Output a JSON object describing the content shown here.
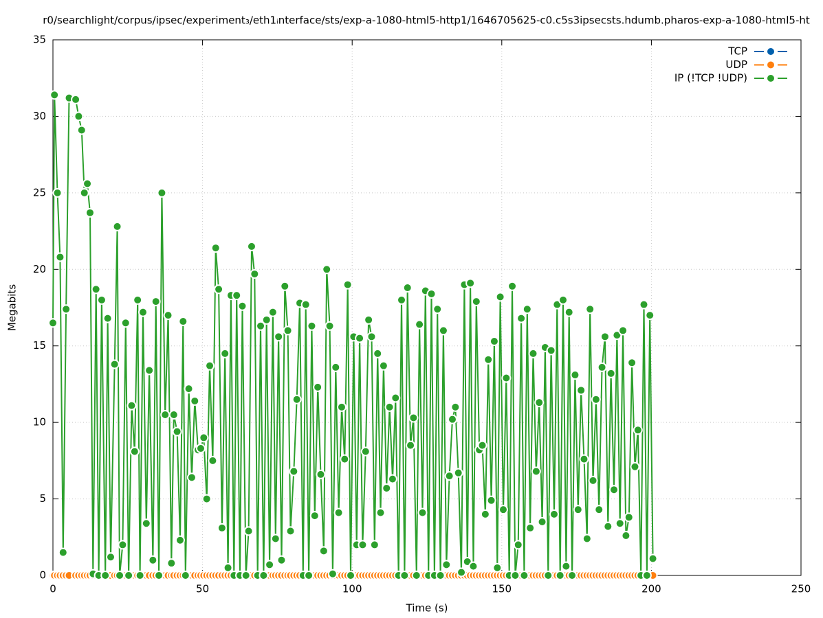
{
  "chart_data": {
    "type": "line",
    "title": "r0/searchlight/corpus/ipsec/experiment₃/eth1ᵢnterface/sts/exp-a-1080-html5-http1/1646705625-c0.c5s3ipsecsts.hdumb.pharos-exp-a-1080-html5-ht",
    "x_label": "Time (s)",
    "y_label": "Megabits",
    "xlim": [
      0,
      250
    ],
    "xticks": [
      0,
      50,
      100,
      150,
      200,
      250
    ],
    "ylim": [
      0,
      35
    ],
    "yticks": [
      0,
      5,
      10,
      15,
      20,
      25,
      30,
      35
    ],
    "grid": true,
    "legend": "top-right",
    "x": [
      0,
      0.5,
      1.5,
      2.4,
      3.4,
      4.4,
      5.4,
      7.6,
      8.6,
      9.6,
      10.5,
      11.5,
      12.4,
      13.4,
      14.4,
      15.3,
      16.3,
      17.5,
      18.3,
      19.3,
      20.6,
      21.5,
      22.3,
      23.3,
      24.3,
      25.3,
      26.3,
      27.3,
      28.3,
      29.1,
      30.1,
      31.2,
      32.2,
      33.4,
      34.4,
      35.4,
      36.4,
      37.5,
      38.5,
      39.6,
      40.4,
      41.5,
      42.5,
      43.5,
      44.3,
      45.4,
      46.4,
      47.4,
      48.5,
      49.4,
      50.4,
      51.4,
      52.4,
      53.4,
      54.4,
      55.4,
      56.5,
      57.5,
      58.5,
      59.5,
      60.5,
      61.4,
      62.5,
      63.3,
      64.5,
      65.4,
      66.4,
      67.4,
      68.4,
      69.4,
      70.4,
      71.4,
      72.4,
      73.5,
      74.4,
      75.4,
      76.4,
      77.5,
      78.5,
      79.4,
      80.5,
      81.5,
      82.5,
      83.6,
      84.5,
      85.5,
      86.5,
      87.5,
      88.5,
      89.5,
      90.5,
      91.5,
      92.5,
      93.5,
      94.5,
      95.5,
      96.5,
      97.5,
      98.5,
      99.5,
      100.5,
      101.5,
      102.5,
      103.5,
      104.5,
      105.5,
      106.5,
      107.5,
      108.5,
      109.5,
      110.5,
      111.5,
      112.5,
      113.5,
      114.5,
      115.5,
      116.5,
      117.5,
      118.5,
      119.5,
      120.5,
      121.5,
      122.5,
      123.5,
      124.5,
      125.5,
      126.5,
      127.5,
      128.5,
      129.5,
      130.5,
      131.5,
      132.5,
      133.5,
      134.5,
      135.5,
      136.5,
      137.5,
      138.5,
      139.5,
      140.5,
      141.5,
      142.5,
      143.5,
      144.5,
      145.5,
      146.5,
      147.5,
      148.5,
      149.5,
      150.5,
      151.5,
      152.5,
      153.5,
      154.5,
      155.5,
      156.5,
      157.5,
      158.5,
      159.5,
      160.5,
      161.5,
      162.5,
      163.5,
      164.5,
      165.5,
      166.5,
      167.5,
      168.5,
      169.5,
      170.5,
      171.5,
      172.5,
      173.5,
      174.5,
      175.5,
      176.5,
      177.5,
      178.5,
      179.5,
      180.5,
      181.5,
      182.5,
      183.5,
      184.5,
      185.5,
      186.5,
      187.5,
      188.5,
      189.5,
      190.5,
      191.5,
      192.5,
      193.5,
      194.5,
      195.5,
      196.5,
      197.5,
      198.5,
      199.5,
      200.5
    ],
    "series": [
      {
        "name": "TCP",
        "color": "#0060ad",
        "values": [
          0,
          0,
          0,
          0,
          0,
          0,
          0,
          0,
          0,
          0,
          0,
          0,
          0,
          0,
          0,
          0,
          0,
          0,
          0,
          0,
          0,
          0,
          0,
          0,
          0,
          0,
          0,
          0,
          0,
          0,
          0,
          0,
          0,
          0,
          0,
          0,
          0,
          0,
          0,
          0,
          0,
          0,
          0,
          0,
          0,
          0,
          0,
          0,
          0,
          0,
          0,
          0,
          0,
          0,
          0,
          0,
          0,
          0,
          0,
          0,
          0,
          0,
          0,
          0,
          0,
          0,
          0,
          0,
          0,
          0,
          0,
          0,
          0,
          0,
          0,
          0,
          0,
          0,
          0,
          0,
          0,
          0,
          0,
          0,
          0,
          0,
          0,
          0,
          0,
          0,
          0,
          0,
          0,
          0,
          0,
          0,
          0,
          0,
          0,
          0,
          0,
          0,
          0,
          0,
          0,
          0,
          0,
          0,
          0,
          0,
          0,
          0,
          0,
          0,
          0,
          0,
          0,
          0,
          0,
          0,
          0,
          0,
          0,
          0,
          0,
          0,
          0,
          0,
          0,
          0,
          0,
          0,
          0,
          0,
          0,
          0,
          0,
          0,
          0,
          0,
          0,
          0,
          0,
          0,
          0,
          0,
          0,
          0,
          0,
          0,
          0,
          0,
          0,
          0,
          0,
          0,
          0,
          0,
          0,
          0,
          0,
          0,
          0,
          0,
          0,
          0,
          0,
          0,
          0,
          0,
          0,
          0,
          0,
          0,
          0,
          0,
          0,
          0,
          0,
          0,
          0,
          0,
          0,
          0,
          0,
          0,
          0,
          0,
          0,
          0,
          0,
          0,
          0,
          0,
          0,
          0,
          0,
          0,
          0,
          0,
          0
        ]
      },
      {
        "name": "UDP",
        "color": "#ff7f0e",
        "values": [
          0,
          0,
          0,
          0,
          0,
          0,
          0,
          0,
          0,
          0,
          0,
          0,
          0,
          0,
          0,
          0,
          0,
          0,
          0,
          0,
          0,
          0,
          0,
          0,
          0,
          0,
          0,
          0,
          0,
          0,
          0,
          0,
          0,
          0,
          0,
          0,
          0,
          0,
          0,
          0,
          0,
          0,
          0,
          0,
          0,
          0,
          0,
          0,
          0,
          0,
          0,
          0,
          0,
          0,
          0,
          0,
          0,
          0,
          0,
          0,
          0,
          0,
          0,
          0,
          0,
          0,
          0,
          0,
          0,
          0,
          0,
          0,
          0,
          0,
          0,
          0,
          0,
          0,
          0,
          0,
          0,
          0,
          0,
          0,
          0,
          0,
          0,
          0,
          0,
          0,
          0,
          0,
          0,
          0,
          0,
          0,
          0,
          0,
          0,
          0,
          0,
          0,
          0,
          0,
          0,
          0,
          0,
          0,
          0,
          0,
          0,
          0,
          0,
          0,
          0,
          0,
          0,
          0,
          0,
          0,
          0,
          0,
          0,
          0,
          0,
          0,
          0,
          0,
          0,
          0,
          0,
          0,
          0,
          0,
          0,
          0,
          0,
          0,
          0,
          0,
          0,
          0,
          0,
          0,
          0,
          0,
          0,
          0,
          0,
          0,
          0,
          0,
          0,
          0,
          0,
          0,
          0,
          0,
          0,
          0,
          0,
          0,
          0,
          0,
          0,
          0,
          0,
          0,
          0,
          0,
          0,
          0,
          0,
          0,
          0,
          0,
          0,
          0,
          0,
          0,
          0,
          0,
          0,
          0,
          0,
          0,
          0,
          0,
          0,
          0,
          0,
          0,
          0,
          0,
          0,
          0,
          0,
          0,
          0,
          0,
          0
        ]
      },
      {
        "name": "IP (!TCP  !UDP)",
        "color": "#2ca02c",
        "values": [
          16.5,
          31.4,
          25,
          20.8,
          1.5,
          17.4,
          31.2,
          31.1,
          30,
          29.1,
          25,
          25.6,
          23.7,
          0.1,
          18.7,
          0,
          18,
          0,
          16.8,
          1.2,
          13.8,
          22.8,
          0,
          2,
          16.5,
          0,
          11.1,
          8.1,
          18,
          0,
          17.2,
          3.4,
          13.4,
          1,
          17.9,
          0,
          25,
          10.5,
          17,
          0.8,
          10.5,
          9.4,
          2.3,
          16.6,
          0,
          12.2,
          6.4,
          11.4,
          8.2,
          8.3,
          9,
          5,
          13.7,
          7.5,
          21.4,
          18.7,
          3.1,
          14.5,
          0.5,
          18.3,
          0,
          18.3,
          0,
          17.6,
          0,
          2.9,
          21.5,
          19.7,
          0,
          16.3,
          0,
          16.7,
          0.7,
          17.2,
          2.4,
          15.6,
          1,
          18.9,
          16,
          2.9,
          6.8,
          11.5,
          17.8,
          0,
          17.7,
          0,
          16.3,
          3.9,
          12.3,
          6.6,
          1.6,
          20,
          16.3,
          0.1,
          13.6,
          4.1,
          11,
          7.6,
          19,
          0,
          15.6,
          2,
          15.5,
          2,
          8.1,
          16.7,
          15.6,
          2,
          14.5,
          4.1,
          13.7,
          5.7,
          11,
          6.3,
          11.6,
          0,
          18,
          0,
          18.8,
          8.5,
          10.3,
          0,
          16.4,
          4.1,
          18.6,
          0,
          18.4,
          0,
          17.4,
          0,
          16,
          0.7,
          6.5,
          10.2,
          11,
          6.7,
          0.2,
          19,
          0.9,
          19.1,
          0.6,
          17.9,
          8.2,
          8.5,
          4,
          14.1,
          4.9,
          15.3,
          0.5,
          18.2,
          4.3,
          12.9,
          0,
          18.9,
          0,
          2,
          16.8,
          0,
          17.4,
          3.1,
          14.5,
          6.8,
          11.3,
          3.5,
          14.9,
          0,
          14.7,
          4,
          17.7,
          0,
          18,
          0.6,
          17.2,
          0,
          13.1,
          4.3,
          12.1,
          7.6,
          2.4,
          17.4,
          6.2,
          11.5,
          4.3,
          13.6,
          15.6,
          3.2,
          13.2,
          5.6,
          15.7,
          3.4,
          16,
          2.6,
          3.8,
          13.9,
          7.1,
          9.5,
          0,
          17.7,
          0,
          17,
          1.1
        ]
      }
    ]
  }
}
